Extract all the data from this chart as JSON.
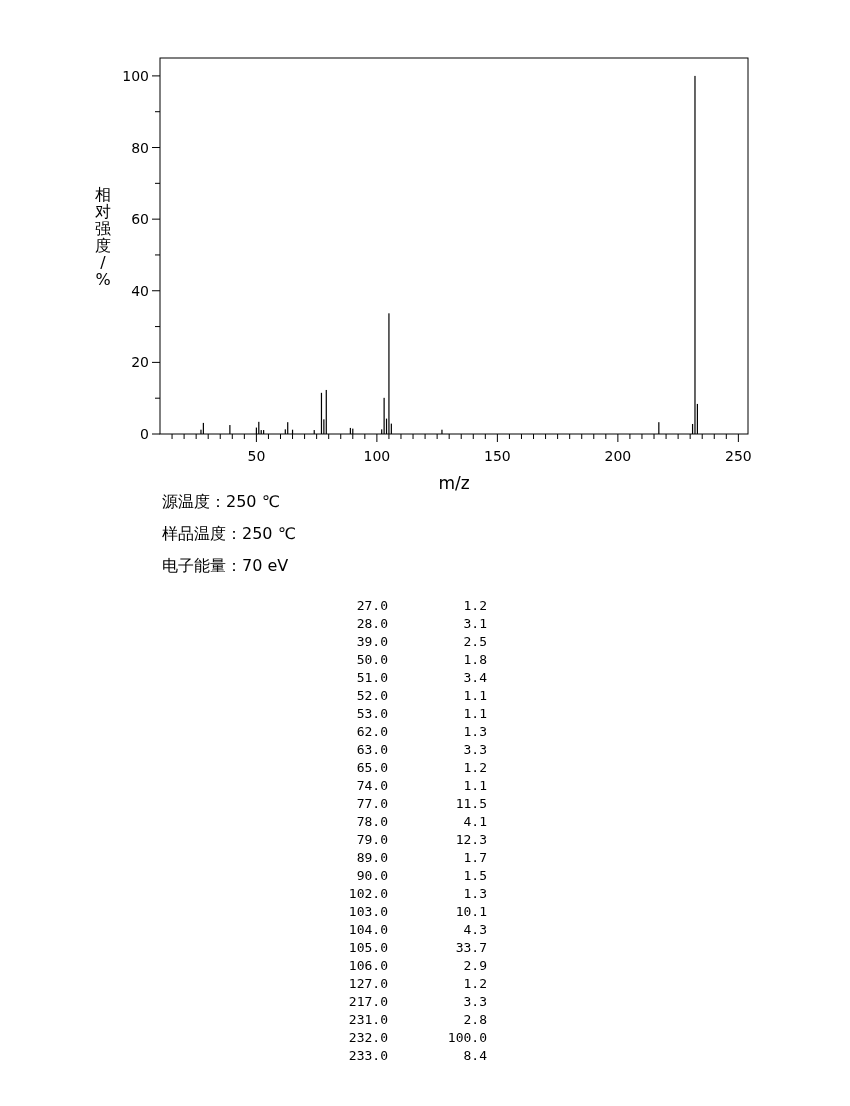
{
  "chart_data": {
    "type": "bar",
    "xlabel": "m/z",
    "ylabel": "相对强度/%",
    "x": [
      27,
      28,
      39,
      50,
      51,
      52,
      53,
      62,
      63,
      65,
      74,
      77,
      78,
      79,
      89,
      90,
      102,
      103,
      104,
      105,
      106,
      127,
      217,
      231,
      232,
      233
    ],
    "values": [
      1.2,
      3.1,
      2.5,
      1.8,
      3.4,
      1.1,
      1.1,
      1.3,
      3.3,
      1.2,
      1.1,
      11.5,
      4.1,
      12.3,
      1.7,
      1.5,
      1.3,
      10.1,
      4.3,
      33.7,
      2.9,
      1.2,
      3.3,
      2.8,
      100.0,
      8.4
    ],
    "color": "#000000",
    "xlim": [
      10,
      254
    ],
    "ylim": [
      0,
      105
    ],
    "xticks": [
      {
        "value": 15,
        "label": null
      },
      {
        "value": 20,
        "label": null
      },
      {
        "value": 25,
        "label": null
      },
      {
        "value": 30,
        "label": null
      },
      {
        "value": 35,
        "label": null
      },
      {
        "value": 40,
        "label": null
      },
      {
        "value": 45,
        "label": null
      },
      50,
      {
        "value": 55,
        "label": null
      },
      {
        "value": 60,
        "label": null
      },
      {
        "value": 65,
        "label": null
      },
      {
        "value": 70,
        "label": null
      },
      {
        "value": 75,
        "label": null
      },
      {
        "value": 80,
        "label": null
      },
      {
        "value": 85,
        "label": null
      },
      {
        "value": 90,
        "label": null
      },
      {
        "value": 95,
        "label": null
      },
      100,
      {
        "value": 105,
        "label": null
      },
      {
        "value": 110,
        "label": null
      },
      {
        "value": 115,
        "label": null
      },
      {
        "value": 120,
        "label": null
      },
      {
        "value": 125,
        "label": null
      },
      {
        "value": 130,
        "label": null
      },
      {
        "value": 135,
        "label": null
      },
      {
        "value": 140,
        "label": null
      },
      {
        "value": 145,
        "label": null
      },
      150,
      {
        "value": 155,
        "label": null
      },
      {
        "value": 160,
        "label": null
      },
      {
        "value": 165,
        "label": null
      },
      {
        "value": 170,
        "label": null
      },
      {
        "value": 175,
        "label": null
      },
      {
        "value": 180,
        "label": null
      },
      {
        "value": 185,
        "label": null
      },
      {
        "value": 190,
        "label": null
      },
      {
        "value": 195,
        "label": null
      },
      200,
      {
        "value": 205,
        "label": null
      },
      {
        "value": 210,
        "label": null
      },
      {
        "value": 215,
        "label": null
      },
      {
        "value": 220,
        "label": null
      },
      {
        "value": 225,
        "label": null
      },
      {
        "value": 230,
        "label": null
      },
      {
        "value": 235,
        "label": null
      },
      {
        "value": 240,
        "label": null
      },
      {
        "value": 245,
        "label": null
      },
      250
    ],
    "yticks": [
      0,
      {
        "value": 10,
        "label": null
      },
      20,
      {
        "value": 30,
        "label": null
      },
      40,
      {
        "value": 50,
        "label": null
      },
      60,
      {
        "value": 70,
        "label": null
      },
      80,
      {
        "value": 90,
        "label": null
      },
      100
    ],
    "annotations": [
      "源温度：250 ℃",
      "样品温度：250 ℃",
      "电子能量：70 eV",
      "27.0",
      "1.2",
      "28.0",
      "3.1",
      "39.0",
      "2.5",
      "50.0",
      "1.8",
      "51.0",
      "3.4",
      "52.0",
      "1.1",
      "53.0",
      "1.1",
      "62.0",
      "1.3",
      "63.0",
      "3.3",
      "65.0",
      "1.2",
      "74.0",
      "1.1",
      "77.0",
      "11.5",
      "78.0",
      "4.1",
      "79.0",
      "12.3",
      "89.0",
      "1.7",
      "90.0",
      "1.5",
      "102.0",
      "1.3",
      "103.0",
      "10.1",
      "104.0",
      "4.3",
      "105.0",
      "33.7",
      "106.0",
      "2.9",
      "127.0",
      "1.2",
      "217.0",
      "3.3",
      "231.0",
      "2.8",
      "232.0",
      "100.0",
      "233.0",
      "8.4"
    ],
    "grid": false
  }
}
